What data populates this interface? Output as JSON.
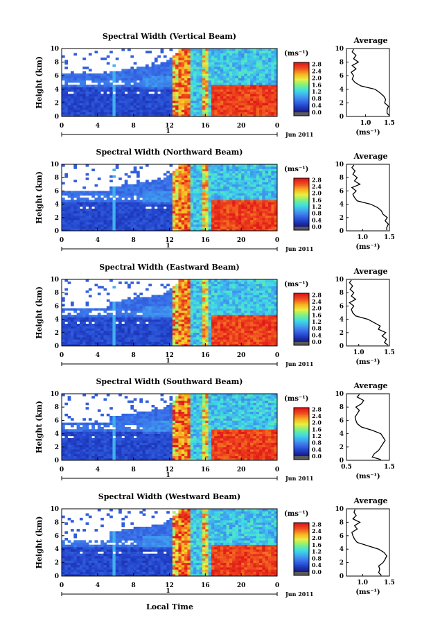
{
  "figure": {
    "xlabel": "Local Time",
    "date_label": "Jun 2011",
    "day_label": "1",
    "avg_title": "Average",
    "avg_xlabel": "(ms⁻¹)",
    "colorbar_unit": "(ms⁻¹)",
    "ylabel": "Height (km)"
  },
  "colors": {
    "colormap": [
      "#1a1a80",
      "#2040c8",
      "#3a6ee8",
      "#40a8f0",
      "#40e0e0",
      "#80f080",
      "#e8f040",
      "#f8b020",
      "#f05020",
      "#e01818"
    ],
    "colorbar_bottom": "#5a5a5a"
  },
  "chart_data": [
    {
      "type": "heatmap",
      "title": "Spectral Width (Vertical Beam)",
      "x_ticks": [
        "0",
        "4",
        "8",
        "12",
        "16",
        "20",
        "0"
      ],
      "y_ticks": [
        "0",
        "2",
        "4",
        "6",
        "8",
        "10"
      ],
      "xlim": [
        0,
        24
      ],
      "ylim": [
        0,
        10
      ],
      "colorbar_ticks": [
        "0.0",
        "0.4",
        "0.8",
        "1.2",
        "1.6",
        "2.0",
        "2.4",
        "2.8"
      ],
      "average": {
        "xlim": [
          0.6,
          1.5
        ],
        "x_ticks": [
          "1.0",
          "1.5"
        ],
        "y_ticks": [
          "0",
          "2",
          "4",
          "6",
          "8",
          "10"
        ],
        "height": [
          0.1,
          0.5,
          1.0,
          1.5,
          2.0,
          2.5,
          3.0,
          3.5,
          4.0,
          4.5,
          5.0,
          5.5,
          6.0,
          6.5,
          7.0,
          7.5,
          8.0,
          8.5,
          9.0,
          9.5,
          9.9
        ],
        "width": [
          1.5,
          1.45,
          1.45,
          1.48,
          1.4,
          1.42,
          1.38,
          1.3,
          1.2,
          0.9,
          0.78,
          0.72,
          0.75,
          0.7,
          0.8,
          0.72,
          0.85,
          0.75,
          0.8,
          0.72,
          0.75
        ]
      }
    },
    {
      "type": "heatmap",
      "title": "Spectral Width (Northward Beam)",
      "x_ticks": [
        "0",
        "4",
        "8",
        "12",
        "16",
        "20",
        "0"
      ],
      "y_ticks": [
        "0",
        "2",
        "4",
        "6",
        "8",
        "10"
      ],
      "xlim": [
        0,
        24
      ],
      "ylim": [
        0,
        10
      ],
      "colorbar_ticks": [
        "0.0",
        "0.4",
        "0.8",
        "1.2",
        "1.6",
        "2.0",
        "2.4",
        "2.8"
      ],
      "average": {
        "xlim": [
          0.7,
          1.5
        ],
        "x_ticks": [
          "1.0",
          "1.5"
        ],
        "y_ticks": [
          "0",
          "2",
          "4",
          "6",
          "8",
          "10"
        ],
        "height": [
          0.1,
          0.5,
          1.0,
          1.5,
          2.0,
          2.5,
          3.0,
          3.5,
          4.0,
          4.5,
          5.0,
          5.5,
          6.0,
          6.5,
          7.0,
          7.5,
          8.0,
          8.5,
          9.0,
          9.5,
          9.9
        ],
        "width": [
          1.45,
          1.45,
          1.48,
          1.42,
          1.46,
          1.38,
          1.35,
          1.28,
          1.15,
          0.9,
          0.85,
          0.82,
          0.88,
          0.8,
          0.95,
          0.85,
          0.9,
          0.82,
          0.86,
          0.8,
          0.84
        ]
      }
    },
    {
      "type": "heatmap",
      "title": "Spectral Width (Eastward Beam)",
      "x_ticks": [
        "0",
        "4",
        "8",
        "12",
        "16",
        "20",
        "0"
      ],
      "y_ticks": [
        "0",
        "2",
        "4",
        "6",
        "8",
        "10"
      ],
      "xlim": [
        0,
        24
      ],
      "ylim": [
        0,
        10
      ],
      "colorbar_ticks": [
        "0.0",
        "0.4",
        "0.8",
        "1.2",
        "1.6",
        "2.0",
        "2.4",
        "2.8"
      ],
      "average": {
        "xlim": [
          0.8,
          1.5
        ],
        "x_ticks": [
          "1.0",
          "1.5"
        ],
        "y_ticks": [
          "0",
          "2",
          "4",
          "6",
          "8",
          "10"
        ],
        "height": [
          0.1,
          0.5,
          1.0,
          1.5,
          2.0,
          2.5,
          3.0,
          3.5,
          4.0,
          4.5,
          5.0,
          5.5,
          6.0,
          6.5,
          7.0,
          7.5,
          8.0,
          8.5,
          9.0,
          9.5,
          9.9
        ],
        "width": [
          1.48,
          1.42,
          1.45,
          1.38,
          1.44,
          1.32,
          1.35,
          1.25,
          1.15,
          0.95,
          0.9,
          0.88,
          0.92,
          0.85,
          0.95,
          0.88,
          0.92,
          0.86,
          0.9,
          0.85,
          0.88
        ]
      }
    },
    {
      "type": "heatmap",
      "title": "Spectral Width (Southward Beam)",
      "x_ticks": [
        "0",
        "4",
        "8",
        "12",
        "16",
        "20",
        "0"
      ],
      "y_ticks": [
        "0",
        "2",
        "4",
        "6",
        "8",
        "10"
      ],
      "xlim": [
        0,
        24
      ],
      "ylim": [
        0,
        10
      ],
      "colorbar_ticks": [
        "0.0",
        "0.4",
        "0.8",
        "1.2",
        "1.6",
        "2.0",
        "2.4",
        "2.8"
      ],
      "average": {
        "xlim": [
          0.5,
          1.5
        ],
        "x_ticks": [
          "0.5",
          "1.5"
        ],
        "y_ticks": [
          "0",
          "2",
          "4",
          "6",
          "8",
          "10"
        ],
        "height": [
          0.1,
          0.5,
          1.0,
          1.5,
          2.0,
          2.5,
          3.0,
          3.5,
          4.0,
          4.5,
          5.0,
          5.5,
          6.0,
          6.5,
          7.0,
          7.5,
          8.0,
          8.5,
          9.0,
          9.5,
          9.9
        ],
        "width": [
          1.3,
          1.1,
          1.15,
          1.25,
          1.3,
          1.35,
          1.4,
          1.35,
          1.3,
          1.1,
          0.85,
          0.75,
          0.72,
          0.7,
          0.75,
          0.8,
          0.72,
          0.85,
          0.9,
          0.75,
          0.8
        ]
      }
    },
    {
      "type": "heatmap",
      "title": "Spectral Width (Westward Beam)",
      "x_ticks": [
        "0",
        "4",
        "8",
        "12",
        "16",
        "20",
        "0"
      ],
      "y_ticks": [
        "0",
        "2",
        "4",
        "6",
        "8",
        "10"
      ],
      "xlim": [
        0,
        24
      ],
      "ylim": [
        0,
        10
      ],
      "colorbar_ticks": [
        "0.0",
        "0.4",
        "0.8",
        "1.2",
        "1.6",
        "2.0",
        "2.4",
        "2.8"
      ],
      "average": {
        "xlim": [
          0.7,
          1.5
        ],
        "x_ticks": [
          "1.0",
          "1.5"
        ],
        "y_ticks": [
          "0",
          "2",
          "4",
          "6",
          "8",
          "10"
        ],
        "height": [
          0.1,
          0.5,
          1.0,
          1.5,
          2.0,
          2.5,
          3.0,
          3.5,
          4.0,
          4.5,
          5.0,
          5.5,
          6.0,
          6.5,
          7.0,
          7.5,
          8.0,
          8.5,
          9.0,
          9.5,
          9.9
        ],
        "width": [
          1.35,
          1.3,
          1.32,
          1.3,
          1.38,
          1.42,
          1.45,
          1.4,
          1.3,
          1.1,
          0.9,
          0.85,
          0.82,
          0.8,
          0.9,
          0.85,
          0.95,
          0.82,
          0.88,
          0.84,
          0.86
        ]
      }
    }
  ]
}
